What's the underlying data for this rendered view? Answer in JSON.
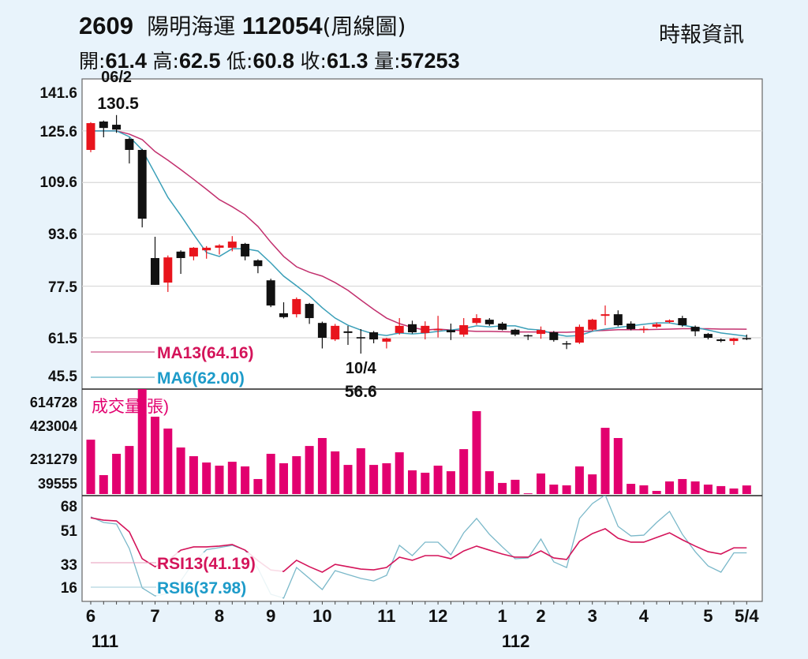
{
  "header": {
    "code": "2609",
    "name": "陽明海運",
    "date_code": "112054",
    "chart_kind": "(周線圖)",
    "source": "時報資訊",
    "open_label": "開:",
    "open": "61.4",
    "high_label": "高:",
    "high": "62.5",
    "low_label": "低:",
    "low": "60.8",
    "close_label": "收:",
    "close": "61.3",
    "volume_label": "量:",
    "volume": "57253"
  },
  "colors": {
    "up": "#e8141c",
    "down": "#111111",
    "ma13": "#c2306e",
    "ma6": "#3a9fb8",
    "volume": "#e2006f",
    "rsi13": "#d4145a",
    "rsi6": "#7ab8c9",
    "ma13_text": "#d4145a",
    "ma6_text": "#1d9bc9"
  },
  "chart_data": {
    "type": "candlestick",
    "price_axis": {
      "ticks": [
        "141.6",
        "125.6",
        "109.6",
        "93.6",
        "77.5",
        "61.5",
        "45.5"
      ],
      "ylim": [
        45.5,
        141.6
      ]
    },
    "volume_axis": {
      "title": "成交量(張)",
      "ticks": [
        "614728",
        "423004",
        "231279",
        "39555"
      ]
    },
    "rsi_axis": {
      "ticks": [
        "68",
        "51",
        "33",
        "16"
      ]
    },
    "x_labels": [
      {
        "index": 0,
        "label": "6",
        "sub": "111"
      },
      {
        "index": 5,
        "label": "7"
      },
      {
        "index": 10,
        "label": "8"
      },
      {
        "index": 14,
        "label": "9"
      },
      {
        "index": 18,
        "label": "10"
      },
      {
        "index": 23,
        "label": "11"
      },
      {
        "index": 27,
        "label": "12"
      },
      {
        "index": 32,
        "label": "1",
        "sub": "112"
      },
      {
        "index": 35,
        "label": "2"
      },
      {
        "index": 39,
        "label": "3"
      },
      {
        "index": 43,
        "label": "4"
      },
      {
        "index": 48,
        "label": "5"
      },
      {
        "index": 51,
        "label": "5/4"
      }
    ],
    "annotations": [
      {
        "index": 2,
        "date": "06/2",
        "value": "130.5",
        "kind": "high"
      },
      {
        "index": 21,
        "date": "10/4",
        "value": "56.6",
        "kind": "low"
      }
    ],
    "legend": {
      "ma13": "MA13(64.16)",
      "ma6": "MA6(62.00)",
      "rsi13": "RSI13(41.19)",
      "rsi6": "RSI6(37.98)"
    },
    "ohlc": [
      [
        119.7,
        128.3,
        119.0,
        128.0
      ],
      [
        128.5,
        128.8,
        123.6,
        126.5
      ],
      [
        127.5,
        130.5,
        125.0,
        126.0
      ],
      [
        123.1,
        123.5,
        115.5,
        119.7
      ],
      [
        119.7,
        120.0,
        95.7,
        98.4
      ],
      [
        86.2,
        92.8,
        77.9,
        77.9
      ],
      [
        78.6,
        87.0,
        75.7,
        86.4
      ],
      [
        88.2,
        88.6,
        81.3,
        86.2
      ],
      [
        86.7,
        89.6,
        85.5,
        89.4
      ],
      [
        88.6,
        89.9,
        86.0,
        89.4
      ],
      [
        89.4,
        90.5,
        87.3,
        90.1
      ],
      [
        89.4,
        93.0,
        88.3,
        91.3
      ],
      [
        90.6,
        90.9,
        85.5,
        86.7
      ],
      [
        85.5,
        85.8,
        81.5,
        83.7
      ],
      [
        79.3,
        79.8,
        71.0,
        71.5
      ],
      [
        69.1,
        72.5,
        67.5,
        67.9
      ],
      [
        68.8,
        74.0,
        67.8,
        73.5
      ],
      [
        72.0,
        72.3,
        65.8,
        67.6
      ],
      [
        66.1,
        66.5,
        58.2,
        61.5
      ],
      [
        61.0,
        65.8,
        60.5,
        65.2
      ],
      [
        63.5,
        65.2,
        59.3,
        63.0
      ],
      [
        61.7,
        64.2,
        56.6,
        61.3
      ],
      [
        63.2,
        63.6,
        59.8,
        61.0
      ],
      [
        60.3,
        61.5,
        58.2,
        61.3
      ],
      [
        63.0,
        67.6,
        62.5,
        65.2
      ],
      [
        65.7,
        66.8,
        62.8,
        63.2
      ],
      [
        63.0,
        66.6,
        61.0,
        65.2
      ],
      [
        63.9,
        68.3,
        61.6,
        64.2
      ],
      [
        63.9,
        65.9,
        60.8,
        63.2
      ],
      [
        62.5,
        67.6,
        61.8,
        65.4
      ],
      [
        66.1,
        68.8,
        65.5,
        67.6
      ],
      [
        67.1,
        67.6,
        65.2,
        65.7
      ],
      [
        65.9,
        66.4,
        63.8,
        64.0
      ],
      [
        64.0,
        64.3,
        62.0,
        62.5
      ],
      [
        62.3,
        62.5,
        60.8,
        62.0
      ],
      [
        62.7,
        65.0,
        61.2,
        63.9
      ],
      [
        63.2,
        63.6,
        60.3,
        60.8
      ],
      [
        59.8,
        60.5,
        58.0,
        59.5
      ],
      [
        60.0,
        65.6,
        59.6,
        64.9
      ],
      [
        64.0,
        67.4,
        63.6,
        67.1
      ],
      [
        68.3,
        71.5,
        65.4,
        68.8
      ],
      [
        68.8,
        70.0,
        65.0,
        65.4
      ],
      [
        65.9,
        66.6,
        63.8,
        64.2
      ],
      [
        64.0,
        65.1,
        63.0,
        64.3
      ],
      [
        64.9,
        66.2,
        64.5,
        65.7
      ],
      [
        66.4,
        67.2,
        66.0,
        66.9
      ],
      [
        67.6,
        68.3,
        64.9,
        65.4
      ],
      [
        64.9,
        65.3,
        62.0,
        63.5
      ],
      [
        62.7,
        63.0,
        61.0,
        61.5
      ],
      [
        61.0,
        61.3,
        60.1,
        60.5
      ],
      [
        60.5,
        61.5,
        59.3,
        61.3
      ],
      [
        61.4,
        62.5,
        60.8,
        61.3
      ]
    ],
    "ma13": [
      125.6,
      125.6,
      125.6,
      124.6,
      122.9,
      119.2,
      116.5,
      113.6,
      110.6,
      107.5,
      104.3,
      102.1,
      99.6,
      96.0,
      91.1,
      86.7,
      83.5,
      81.8,
      80.6,
      78.6,
      76.2,
      73.2,
      70.3,
      67.6,
      65.9,
      64.7,
      63.9,
      64.2,
      63.9,
      63.7,
      63.5,
      63.5,
      63.4,
      63.3,
      63.3,
      63.3,
      63.2,
      63.2,
      63.4,
      63.6,
      63.8,
      64.0,
      64.0,
      64.0,
      64.1,
      64.2,
      64.3,
      64.3,
      64.3,
      64.2,
      64.2,
      64.16
    ],
    "ma6": [
      125.6,
      125.6,
      125.6,
      123.8,
      119.7,
      112.4,
      105.0,
      99.4,
      93.5,
      87.9,
      86.7,
      89.1,
      89.1,
      88.4,
      84.7,
      80.6,
      77.6,
      74.5,
      70.8,
      67.6,
      65.4,
      63.9,
      62.7,
      62.2,
      63.0,
      62.7,
      63.0,
      63.5,
      63.9,
      64.4,
      65.2,
      64.9,
      65.2,
      65.2,
      64.2,
      63.9,
      62.7,
      62.0,
      62.2,
      63.5,
      64.2,
      64.7,
      65.2,
      65.7,
      66.1,
      66.1,
      65.4,
      64.7,
      63.9,
      63.0,
      62.5,
      62.0
    ],
    "volume": [
      362000,
      126000,
      268000,
      320000,
      700000,
      515000,
      436000,
      310000,
      252000,
      210000,
      189000,
      215000,
      184000,
      100000,
      268000,
      205000,
      252000,
      320000,
      373000,
      284000,
      194000,
      305000,
      194000,
      205000,
      278000,
      158000,
      142000,
      189000,
      152000,
      299000,
      552000,
      152000,
      74000,
      95000,
      5000,
      137000,
      63000,
      58000,
      184000,
      131000,
      441000,
      373000,
      68000,
      58000,
      21000,
      84000,
      100000,
      84000,
      63000,
      53000,
      37000,
      57253
    ],
    "rsi13": [
      60.4,
      58.9,
      58.4,
      51.4,
      34.2,
      29.1,
      33,
      39.7,
      41.8,
      41.8,
      42.3,
      43.3,
      39.7,
      33,
      27,
      26.1,
      33.2,
      29.1,
      25.6,
      30.6,
      29.1,
      27.6,
      27.1,
      28.6,
      35.2,
      33.2,
      36.2,
      36.2,
      34.2,
      39.2,
      42.3,
      39.7,
      37.2,
      35.2,
      35.2,
      39.2,
      34.7,
      33.7,
      45.3,
      50.3,
      53.4,
      47.3,
      44.8,
      44.8,
      47.8,
      50.8,
      46.3,
      42.3,
      38.7,
      37.2,
      41.19,
      41.19
    ],
    "rsi6": [
      61,
      57.4,
      56.4,
      40.7,
      15.5,
      10.4,
      12,
      20,
      32,
      40,
      41.3,
      42.8,
      39.7,
      28,
      11.5,
      9,
      28.6,
      21.6,
      14.5,
      26.6,
      24.1,
      21.6,
      20,
      23.6,
      42.8,
      36.2,
      44.8,
      44.8,
      36.7,
      50.8,
      60,
      49.8,
      41.8,
      34.2,
      34.7,
      46.8,
      32.2,
      28.6,
      60,
      69.5,
      75,
      54.9,
      48.8,
      49.3,
      57.4,
      64.5,
      49.8,
      38.7,
      29.6,
      25.6,
      37.98,
      37.98
    ]
  }
}
